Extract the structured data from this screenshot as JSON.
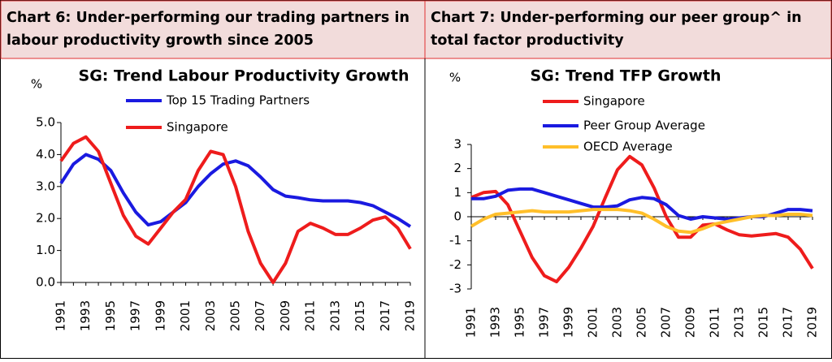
{
  "chart_data": [
    {
      "type": "line",
      "heading": [
        "Chart 6: Under-performing our trading partners in",
        "labour productivity growth since 2005"
      ],
      "title": "SG: Trend Labour Productivity Growth",
      "y_label": "%",
      "categories": [
        "1991",
        null,
        "1993",
        null,
        "1995",
        null,
        "1997",
        null,
        "1999",
        null,
        "2001",
        null,
        "2003",
        null,
        "2005",
        null,
        "2007",
        null,
        "2009",
        null,
        "2011",
        null,
        "2013",
        null,
        "2015",
        null,
        "2017",
        null,
        "2019"
      ],
      "series": [
        {
          "name": "Top 15 Trading Partners",
          "color": "#1a1ae0",
          "values": [
            3.1,
            3.7,
            4.0,
            3.85,
            3.5,
            2.8,
            2.2,
            1.8,
            1.9,
            2.2,
            2.5,
            3.0,
            3.4,
            3.7,
            3.8,
            3.65,
            3.3,
            2.9,
            2.7,
            2.65,
            2.58,
            2.55,
            2.55,
            2.55,
            2.5,
            2.4,
            2.2,
            2.0,
            1.75
          ]
        },
        {
          "name": "Singapore",
          "color": "#ee1c1c",
          "values": [
            3.8,
            4.35,
            4.55,
            4.1,
            3.1,
            2.1,
            1.45,
            1.2,
            1.7,
            2.2,
            2.6,
            3.5,
            4.1,
            4.0,
            3.0,
            1.6,
            0.6,
            0.0,
            0.6,
            1.6,
            1.85,
            1.7,
            1.5,
            1.5,
            1.7,
            1.95,
            2.05,
            1.7,
            1.05
          ]
        }
      ],
      "ylim": [
        0,
        5
      ],
      "yticks": [
        {
          "value": 0,
          "label": "0.0"
        },
        {
          "value": 1,
          "label": "1.0"
        },
        {
          "value": 2,
          "label": "2.0"
        },
        {
          "value": 3,
          "label": "3.0"
        },
        {
          "value": 4,
          "label": "4.0"
        },
        {
          "value": 5,
          "label": "5.0"
        }
      ],
      "x_axis_at_zero": false
    },
    {
      "type": "line",
      "heading": [
        "Chart 7: Under-performing our peer group^ in",
        "total factor productivity"
      ],
      "title": "SG: Trend TFP Growth",
      "y_label": "%",
      "categories": [
        "1991",
        null,
        "1993",
        null,
        "1995",
        null,
        "1997",
        null,
        "1999",
        null,
        "2001",
        null,
        "2003",
        null,
        "2005",
        null,
        "2007",
        null,
        "2009",
        null,
        "2011",
        null,
        "2013",
        null,
        "2015",
        null,
        "2017",
        null,
        "2019"
      ],
      "series": [
        {
          "name": "Singapore",
          "color": "#ee1c1c",
          "values": [
            0.8,
            1.0,
            1.05,
            0.5,
            -0.6,
            -1.7,
            -2.45,
            -2.7,
            -2.1,
            -1.3,
            -0.4,
            0.8,
            1.95,
            2.5,
            2.15,
            1.2,
            0.0,
            -0.85,
            -0.85,
            -0.35,
            -0.3,
            -0.55,
            -0.75,
            -0.8,
            -0.75,
            -0.7,
            -0.85,
            -1.35,
            -2.15
          ]
        },
        {
          "name": "Peer Group Average",
          "color": "#1a1ae0",
          "values": [
            0.75,
            0.75,
            0.85,
            1.1,
            1.15,
            1.15,
            1.0,
            0.85,
            0.7,
            0.55,
            0.4,
            0.4,
            0.45,
            0.7,
            0.8,
            0.75,
            0.5,
            0.05,
            -0.1,
            0.0,
            -0.05,
            -0.1,
            -0.05,
            0.0,
            0.0,
            0.15,
            0.3,
            0.3,
            0.25
          ]
        },
        {
          "name": "OECD Average",
          "color": "#ffbf2a",
          "values": [
            -0.4,
            -0.1,
            0.1,
            0.15,
            0.2,
            0.25,
            0.2,
            0.2,
            0.2,
            0.25,
            0.3,
            0.3,
            0.3,
            0.25,
            0.15,
            -0.1,
            -0.4,
            -0.6,
            -0.65,
            -0.5,
            -0.3,
            -0.2,
            -0.1,
            0.0,
            0.05,
            0.05,
            0.1,
            0.1,
            0.05
          ]
        }
      ],
      "ylim": [
        -3,
        3
      ],
      "yticks": [
        -3,
        -2,
        -1,
        0,
        1,
        2,
        3
      ],
      "x_axis_at_zero": true
    }
  ]
}
